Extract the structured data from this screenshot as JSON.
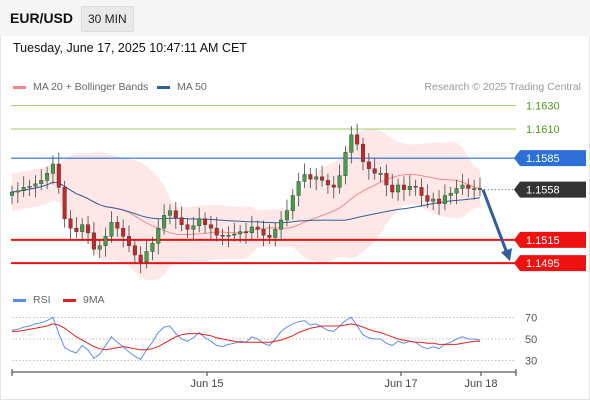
{
  "header": {
    "symbol": "EUR/USD",
    "timeframe": "30 MIN"
  },
  "datetime": "Tuesday, June 17, 2025 10:47:11 AM CET",
  "legend": {
    "ma20": {
      "label": "MA 20 + Bollinger Bands",
      "color": "#f08a8a"
    },
    "ma50": {
      "label": "MA 50",
      "color": "#2f5f9e"
    },
    "rsi": {
      "label": "RSI",
      "color": "#5b8def"
    },
    "ma9": {
      "label": "9MA",
      "color": "#e02020"
    }
  },
  "credit": "Research © 2025 Trading Central",
  "chart_data": [
    {
      "type": "candlestick",
      "title": "EUR/USD 30 MIN",
      "ylim": [
        1.1478,
        1.164
      ],
      "x_ticks": [
        "Jun 15",
        "Jun 17",
        "Jun 18"
      ],
      "close": [
        1.1556,
        1.1557,
        1.156,
        1.1561,
        1.1563,
        1.1566,
        1.1572,
        1.158,
        1.156,
        1.1533,
        1.1525,
        1.1522,
        1.1528,
        1.1521,
        1.1507,
        1.151,
        1.1518,
        1.153,
        1.1525,
        1.1518,
        1.151,
        1.1502,
        1.1496,
        1.1505,
        1.1512,
        1.1525,
        1.1536,
        1.154,
        1.1534,
        1.1528,
        1.1524,
        1.1527,
        1.1533,
        1.1528,
        1.1525,
        1.1519,
        1.1518,
        1.1519,
        1.152,
        1.1522,
        1.1521,
        1.1526,
        1.1524,
        1.1519,
        1.1517,
        1.1524,
        1.1532,
        1.154,
        1.1553,
        1.1565,
        1.1571,
        1.1567,
        1.1569,
        1.1566,
        1.1562,
        1.156,
        1.157,
        1.159,
        1.1605,
        1.1597,
        1.1582,
        1.1576,
        1.1572,
        1.1572,
        1.1562,
        1.1556,
        1.1562,
        1.1558,
        1.1561,
        1.156,
        1.1553,
        1.1548,
        1.155,
        1.1546,
        1.1553,
        1.1555,
        1.1559,
        1.1562,
        1.1559,
        1.1559,
        1.1558
      ],
      "support_resistance": [
        {
          "label": "1.1630",
          "value": 1.163,
          "kind": "resistance-far"
        },
        {
          "label": "1.1610",
          "value": 1.161,
          "kind": "resistance"
        },
        {
          "label": "1.1585",
          "value": 1.1585,
          "kind": "pivot"
        },
        {
          "label": "1.1558",
          "value": 1.1558,
          "kind": "last-price"
        },
        {
          "label": "1.1515",
          "value": 1.1515,
          "kind": "support"
        },
        {
          "label": "1.1495",
          "value": 1.1495,
          "kind": "support"
        }
      ],
      "projection": {
        "from": 1.1558,
        "to": 1.1495
      }
    },
    {
      "type": "line",
      "title": "RSI",
      "ylim": [
        25,
        75
      ],
      "y_ticks": [
        70,
        50,
        30
      ],
      "series": [
        {
          "name": "RSI",
          "values": [
            58,
            59,
            61,
            62,
            64,
            65,
            67,
            70,
            55,
            42,
            39,
            37,
            44,
            40,
            32,
            36,
            44,
            52,
            47,
            43,
            38,
            34,
            31,
            40,
            47,
            56,
            61,
            62,
            55,
            50,
            48,
            51,
            56,
            51,
            48,
            44,
            43,
            45,
            46,
            48,
            47,
            52,
            50,
            46,
            44,
            50,
            57,
            61,
            64,
            66,
            67,
            63,
            64,
            61,
            58,
            57,
            62,
            67,
            70,
            62,
            54,
            51,
            50,
            50,
            46,
            44,
            48,
            46,
            48,
            47,
            43,
            41,
            43,
            41,
            45,
            47,
            50,
            52,
            50,
            50,
            49
          ]
        },
        {
          "name": "9MA",
          "values": [
            57,
            57,
            58,
            59,
            60,
            61,
            62,
            64,
            63,
            60,
            56,
            52,
            49,
            46,
            43,
            41,
            40,
            41,
            42,
            43,
            42,
            41,
            40,
            40,
            41,
            43,
            46,
            49,
            52,
            54,
            55,
            55,
            55,
            54,
            53,
            51,
            50,
            49,
            48,
            47,
            47,
            47,
            47,
            47,
            47,
            48,
            49,
            51,
            53,
            56,
            58,
            60,
            61,
            62,
            62,
            62,
            62,
            63,
            64,
            63,
            61,
            59,
            57,
            56,
            54,
            52,
            50,
            49,
            48,
            47,
            47,
            46,
            46,
            45,
            45,
            45,
            45,
            46,
            47,
            48,
            48
          ]
        }
      ]
    }
  ]
}
